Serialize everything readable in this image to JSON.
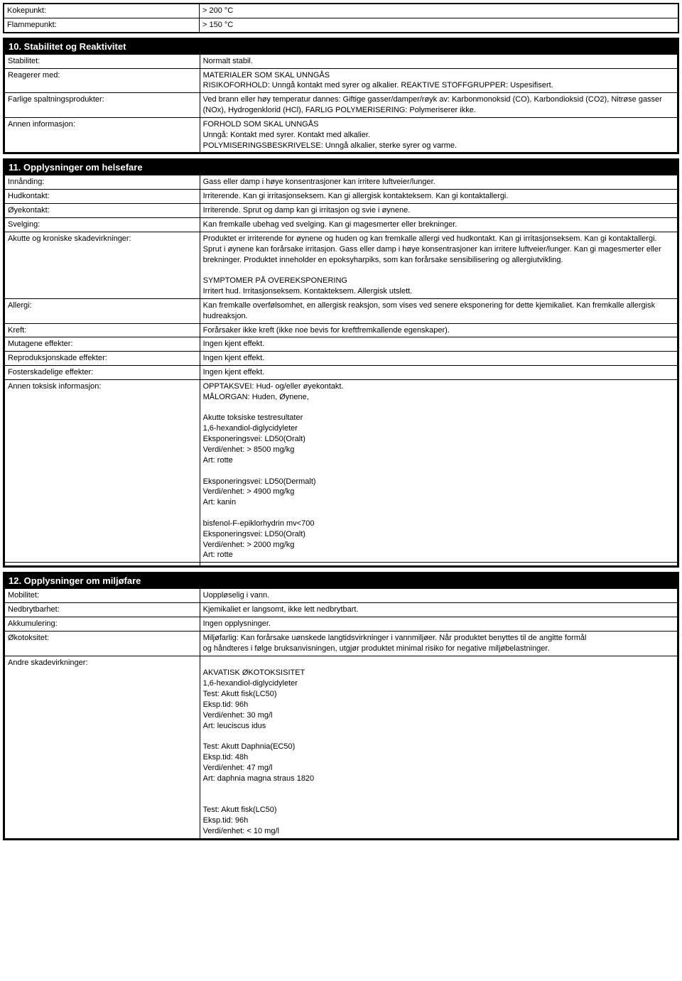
{
  "topProps": {
    "rows": [
      {
        "label": "Kokepunkt:",
        "value": "> 200 °C"
      },
      {
        "label": "Flammepunkt:",
        "value": "> 150 °C"
      }
    ]
  },
  "section10": {
    "title": "10. Stabilitet og Reaktivitet",
    "rows": [
      {
        "label": "Stabilitet:",
        "value": "Normalt stabil."
      },
      {
        "label": "Reagerer med:",
        "value": "MATERIALER SOM SKAL UNNGÅS\nRISIKOFORHOLD: Unngå kontakt med syrer og alkalier. REAKTIVE STOFFGRUPPER: Uspesifisert."
      },
      {
        "label": "Farlige spaltningsprodukter:",
        "value": "Ved brann eller høy temperatur dannes: Giftige gasser/damper/røyk av: Karbonmonoksid (CO), Karbondioksid (CO2), Nitrøse gasser (NOx), Hydrogenklorid (HCl), FARLIG POLYMERISERING: Polymeriserer ikke."
      },
      {
        "label": "Annen informasjon:",
        "value": "FORHOLD SOM SKAL UNNGÅS\nUnngå: Kontakt med syrer. Kontakt med alkalier.\nPOLYMISERINGSBESKRIVELSE: Unngå alkalier, sterke syrer og varme."
      }
    ]
  },
  "section11": {
    "title": "11. Opplysninger om helsefare",
    "rows": [
      {
        "label": "Innånding:",
        "value": "Gass eller damp i høye konsentrasjoner kan irritere luftveier/lunger."
      },
      {
        "label": "Hudkontakt:",
        "value": "Irriterende. Kan gi irritasjonseksem. Kan gi allergisk kontakteksem. Kan gi kontaktallergi."
      },
      {
        "label": "Øyekontakt:",
        "value": "Irriterende. Sprut og damp kan gi irritasjon og svie i øynene."
      },
      {
        "label": "Svelging:",
        "value": "Kan fremkalle ubehag ved svelging. Kan gi magesmerter eller brekninger."
      },
      {
        "label": "Akutte og kroniske skadevirkninger:",
        "value": "Produktet er irriterende for øynene og huden og kan fremkalle allergi ved hudkontakt. Kan gi irritasjonseksem. Kan gi kontaktallergi. Sprut i øynene kan forårsake irritasjon. Gass eller damp i høye konsentrasjoner kan irritere luftveier/lunger. Kan gi magesmerter eller brekninger. Produktet inneholder en epoksyharpiks, som kan forårsake sensibilisering og allergiutvikling.\n\nSYMPTOMER PÅ OVEREKSPONERING\nIrritert hud. Irritasjonseksem. Kontakteksem. Allergisk utslett."
      },
      {
        "label": "Allergi:",
        "value": "Kan fremkalle overfølsomhet, en allergisk reaksjon, som vises ved senere eksponering for dette kjemikaliet. Kan fremkalle allergisk hudreaksjon."
      },
      {
        "label": "Kreft:",
        "value": "Forårsaker ikke kreft (ikke noe bevis for kreftfremkallende egenskaper)."
      },
      {
        "label": "Mutagene effekter:",
        "value": "Ingen kjent effekt."
      },
      {
        "label": "Reproduksjonskade effekter:",
        "value": "Ingen kjent effekt."
      },
      {
        "label": "Fosterskadelige effekter:",
        "value": "Ingen kjent effekt."
      },
      {
        "label": "Annen toksisk informasjon:",
        "value": "OPPTAKSVEI: Hud- og/eller øyekontakt.\nMÅLORGAN: Huden, Øynene,\n\nAkutte toksiske testresultater\n1,6-hexandiol-diglycidyleter\nEksponeringsvei: LD50(Oralt)\nVerdi/enhet: > 8500 mg/kg\nArt: rotte\n\nEksponeringsvei: LD50(Dermalt)\nVerdi/enhet: > 4900 mg/kg\nArt: kanin\n\nbisfenol-F-epiklorhydrin mv<700\nEksponeringsvei: LD50(Oralt)\nVerdi/enhet: > 2000 mg/kg\nArt: rotte"
      }
    ]
  },
  "section12": {
    "title": "12. Opplysninger om miljøfare",
    "rows": [
      {
        "label": "Mobilitet:",
        "value": "Uoppløselig i vann."
      },
      {
        "label": "Nedbrytbarhet:",
        "value": "Kjemikaliet er langsomt, ikke lett nedbrytbart."
      },
      {
        "label": "Akkumulering:",
        "value": "Ingen opplysninger."
      },
      {
        "label": "Økotoksitet:",
        "value": "Miljøfarlig: Kan forårsake uønskede langtidsvirkninger i vannmiljøer. Når produktet benyttes til de angitte formål\nog håndteres i følge bruksanvisningen, utgjør produktet minimal risiko for negative miljøbelastninger."
      },
      {
        "label": "Andre skadevirkninger:",
        "value": "\nAKVATISK ØKOTOKSISITET\n1,6-hexandiol-diglycidyleter\nTest: Akutt fisk(LC50)\nEksp.tid: 96h\nVerdi/enhet: 30 mg/l\nArt: leuciscus idus\n\nTest: Akutt Daphnia(EC50)\nEksp.tid: 48h\nVerdi/enhet: 47 mg/l\nArt: daphnia magna straus 1820\n\n\nTest: Akutt fisk(LC50)\nEksp.tid: 96h\nVerdi/enhet: < 10 mg/l"
      }
    ]
  }
}
